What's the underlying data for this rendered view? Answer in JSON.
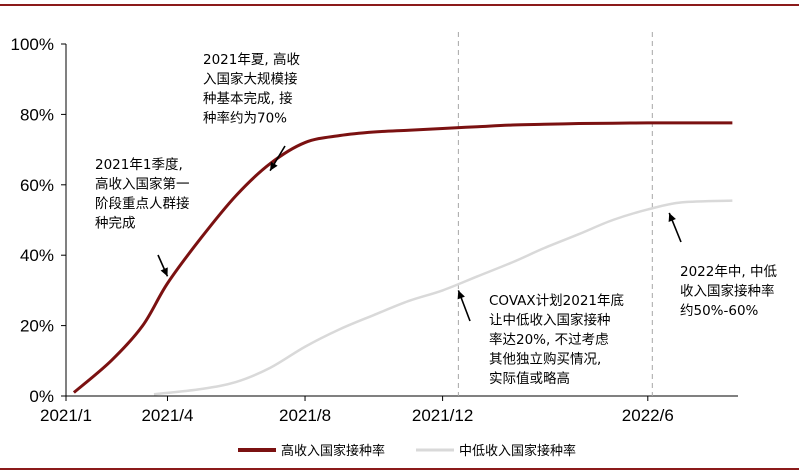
{
  "chart_data": {
    "type": "line",
    "title": "",
    "xlabel": "",
    "ylabel": "",
    "ylim": [
      0,
      100
    ],
    "y_ticks": [
      "0%",
      "20%",
      "40%",
      "60%",
      "80%",
      "100%"
    ],
    "x_ticks": [
      "2021/1",
      "2021/4",
      "2021/8",
      "2021/12",
      "2022/6"
    ],
    "x_tick_values": [
      "2021-01-01",
      "2021-04-01",
      "2021-08-01",
      "2021-12-01",
      "2022-06-01"
    ],
    "x_range": [
      "2021-01-01",
      "2022-08-20"
    ],
    "vlines": [
      "2021-12-15",
      "2022-06-05"
    ],
    "grid": false,
    "legend_position": "bottom",
    "series": [
      {
        "name": "高收入国家接种率",
        "color": "#7b1111",
        "points": [
          [
            "2021-01-08",
            1
          ],
          [
            "2021-02-10",
            10
          ],
          [
            "2021-03-10",
            20
          ],
          [
            "2021-04-01",
            32
          ],
          [
            "2021-05-01",
            45
          ],
          [
            "2021-06-01",
            57
          ],
          [
            "2021-07-01",
            66
          ],
          [
            "2021-08-01",
            72
          ],
          [
            "2021-09-01",
            74
          ],
          [
            "2021-10-01",
            75
          ],
          [
            "2021-11-01",
            75.5
          ],
          [
            "2021-12-01",
            76
          ],
          [
            "2022-01-01",
            76.5
          ],
          [
            "2022-02-01",
            77
          ],
          [
            "2022-03-01",
            77.2
          ],
          [
            "2022-04-01",
            77.4
          ],
          [
            "2022-05-01",
            77.5
          ],
          [
            "2022-06-01",
            77.6
          ],
          [
            "2022-07-01",
            77.6
          ],
          [
            "2022-08-15",
            77.6
          ]
        ]
      },
      {
        "name": "中低收入国家接种率",
        "color": "#d9d9d9",
        "points": [
          [
            "2021-03-20",
            0.5
          ],
          [
            "2021-05-01",
            2
          ],
          [
            "2021-06-01",
            4
          ],
          [
            "2021-07-01",
            8
          ],
          [
            "2021-08-01",
            14
          ],
          [
            "2021-09-01",
            19
          ],
          [
            "2021-10-01",
            23
          ],
          [
            "2021-11-01",
            27
          ],
          [
            "2021-12-01",
            30
          ],
          [
            "2022-01-01",
            34
          ],
          [
            "2022-02-01",
            38
          ],
          [
            "2022-03-01",
            42
          ],
          [
            "2022-04-01",
            46
          ],
          [
            "2022-05-01",
            50
          ],
          [
            "2022-06-01",
            53
          ],
          [
            "2022-07-01",
            55
          ],
          [
            "2022-08-15",
            55.5
          ]
        ]
      }
    ],
    "annotations": [
      {
        "lines": [
          "2021年1季度,",
          "高收入国家第一",
          "阶段重点人群接",
          "种完成"
        ],
        "arrow_to": [
          "2021-04-01",
          34
        ]
      },
      {
        "lines": [
          "2021年夏, 高收",
          "入国家大规模接",
          "种基本完成, 接",
          "种率约为70%"
        ],
        "arrow_to": [
          "2021-07-01",
          64
        ]
      },
      {
        "lines": [
          "COVAX计划2021年底",
          "让中低收入国家接种",
          "率达20%, 不过考虑",
          "其他独立购买情况,",
          "实际值或略高"
        ],
        "arrow_to": [
          "2021-12-15",
          30
        ]
      },
      {
        "lines": [
          "2022年中, 中低",
          "收入国家接种率",
          "约50%-60%"
        ],
        "arrow_to": [
          "2022-06-20",
          52
        ]
      }
    ]
  }
}
